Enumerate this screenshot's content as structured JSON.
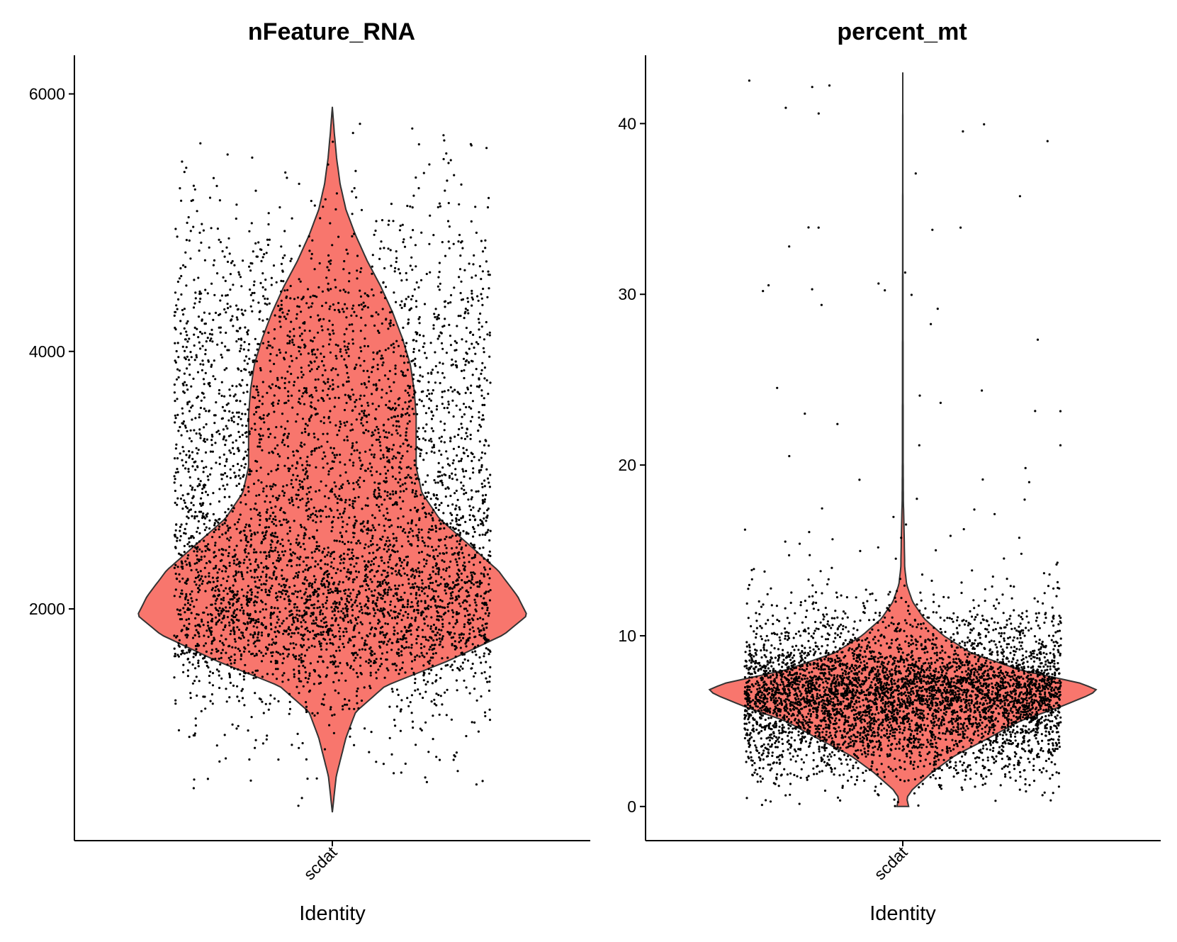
{
  "colors": {
    "violin_fill": "#F8766D",
    "violin_stroke": "#333333",
    "point": "#000000",
    "axis": "#000000"
  },
  "chart_data": [
    {
      "type": "violin",
      "title": "nFeature_RNA",
      "xlabel": "Identity",
      "ylabel": "",
      "categories": [
        "scdat"
      ],
      "ylim": [
        200,
        6300
      ],
      "y_ticks": [
        2000,
        4000,
        6000
      ],
      "y_tick_labels": [
        "2000",
        "4000",
        "6000"
      ],
      "y_min": 420,
      "y_max": 5900,
      "n_points": 5200,
      "jitter_fraction": 0.66,
      "density_profile": [
        [
          420,
          0.0
        ],
        [
          700,
          0.02
        ],
        [
          1000,
          0.07
        ],
        [
          1200,
          0.12
        ],
        [
          1400,
          0.27
        ],
        [
          1600,
          0.6
        ],
        [
          1800,
          0.88
        ],
        [
          1950,
          1.0
        ],
        [
          2100,
          0.95
        ],
        [
          2300,
          0.85
        ],
        [
          2500,
          0.7
        ],
        [
          2700,
          0.55
        ],
        [
          2900,
          0.46
        ],
        [
          3100,
          0.43
        ],
        [
          3300,
          0.43
        ],
        [
          3500,
          0.43
        ],
        [
          3700,
          0.42
        ],
        [
          3900,
          0.4
        ],
        [
          4100,
          0.36
        ],
        [
          4300,
          0.31
        ],
        [
          4500,
          0.25
        ],
        [
          4700,
          0.18
        ],
        [
          4900,
          0.12
        ],
        [
          5100,
          0.07
        ],
        [
          5300,
          0.04
        ],
        [
          5500,
          0.022
        ],
        [
          5700,
          0.01
        ],
        [
          5900,
          0.0
        ]
      ]
    },
    {
      "type": "violin",
      "title": "percent_mt",
      "xlabel": "Identity",
      "ylabel": "",
      "categories": [
        "scdat"
      ],
      "ylim": [
        -2,
        44
      ],
      "y_ticks": [
        0,
        10,
        20,
        30,
        40
      ],
      "y_tick_labels": [
        "0",
        "10",
        "20",
        "30",
        "40"
      ],
      "y_min": 0,
      "y_max": 43,
      "n_points": 5200,
      "jitter_fraction": 0.66,
      "density_profile": [
        [
          0.0,
          0.03
        ],
        [
          0.5,
          0.02
        ],
        [
          1.0,
          0.05
        ],
        [
          2.0,
          0.15
        ],
        [
          3.0,
          0.27
        ],
        [
          4.0,
          0.44
        ],
        [
          5.0,
          0.6
        ],
        [
          5.8,
          0.8
        ],
        [
          6.5,
          0.95
        ],
        [
          6.8,
          1.0
        ],
        [
          7.2,
          0.92
        ],
        [
          8.0,
          0.6
        ],
        [
          9.0,
          0.35
        ],
        [
          10.0,
          0.21
        ],
        [
          11.0,
          0.11
        ],
        [
          12.0,
          0.05
        ],
        [
          13.0,
          0.02
        ],
        [
          14.0,
          0.01
        ],
        [
          16.0,
          0.007
        ],
        [
          18.0,
          0.003
        ],
        [
          20.0,
          0.002
        ],
        [
          25.0,
          0.0015
        ],
        [
          30.0,
          0.001
        ],
        [
          43.0,
          0.0
        ]
      ]
    }
  ]
}
